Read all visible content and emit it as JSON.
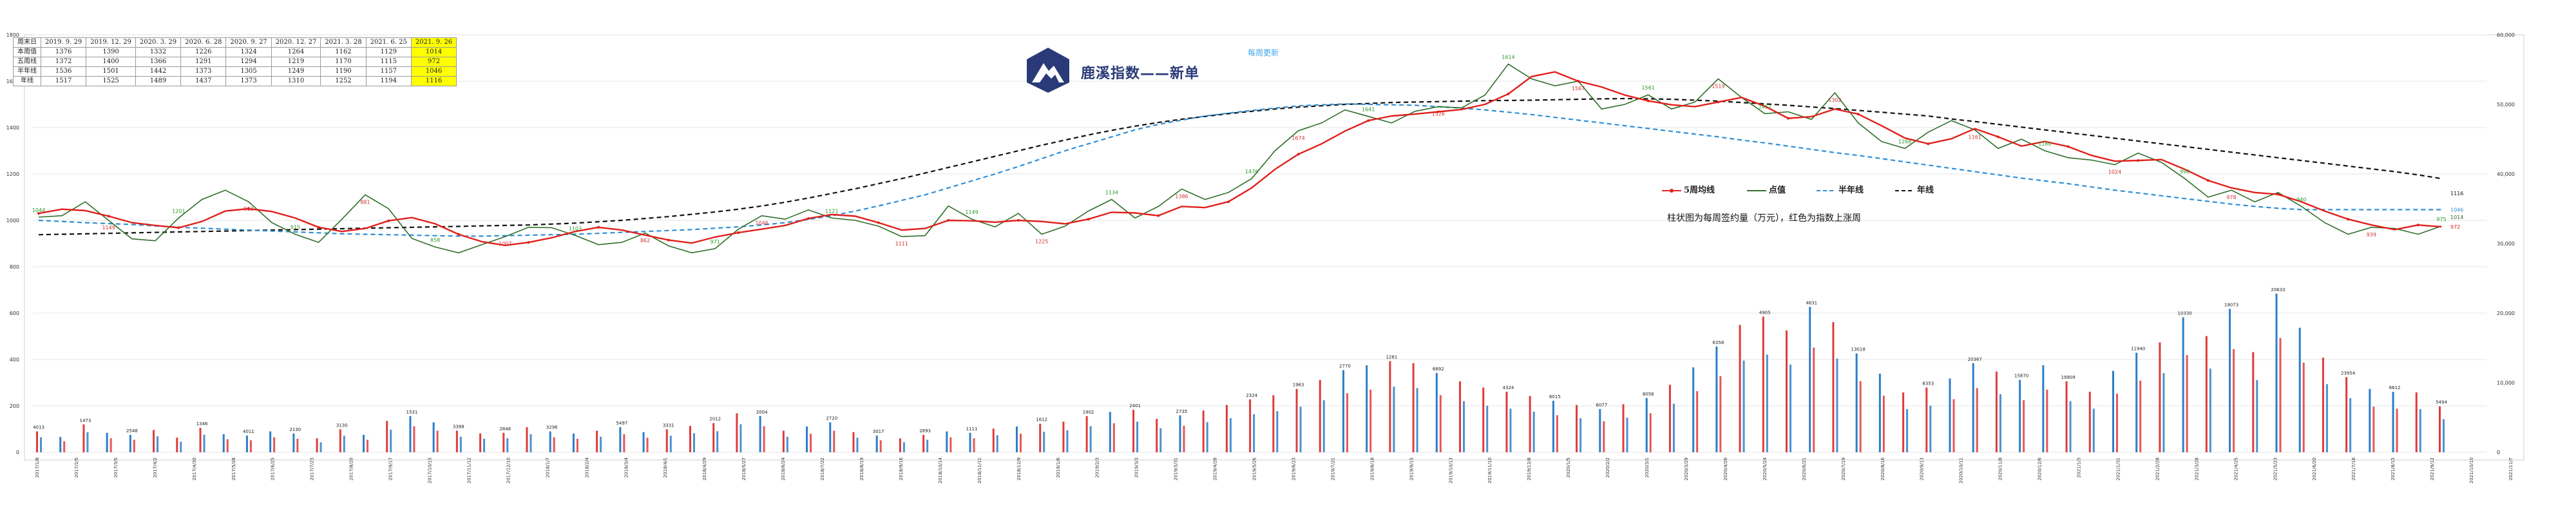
{
  "colors": {
    "ma5": "#e0201c",
    "price": "#2f6f2a",
    "half_year": "#2e8fd6",
    "year": "#111111",
    "bar_up": "#e03a3a",
    "bar_down": "#2b7ec9",
    "highlight": "#ffff00",
    "brand": "#2a3a78",
    "weekly_note": "#3fa7e8"
  },
  "header": {
    "brand_text": "鹿溪指数——新单",
    "weekly_note": "每周更新",
    "logo": "mountain-logo-icon"
  },
  "note": "柱状图为每周签约量（万元），红色为指数上涨周",
  "legend": [
    {
      "label": "5周均线",
      "key": "ma5"
    },
    {
      "label": "点值",
      "key": "price"
    },
    {
      "label": "半年线",
      "key": "half_year"
    },
    {
      "label": "年线",
      "key": "year"
    }
  ],
  "summary_table": {
    "rows": [
      [
        "周末日",
        "2019. 9. 29",
        "2019. 12. 29",
        "2020. 3. 29",
        "2020. 6. 28",
        "2020. 9. 27",
        "2020. 12. 27",
        "2021. 3. 28",
        "2021. 6. 25",
        "2021. 9. 26"
      ],
      [
        "本周值",
        "1376",
        "1390",
        "1332",
        "1226",
        "1324",
        "1264",
        "1162",
        "1129",
        "1014"
      ],
      [
        "五周线",
        "1372",
        "1400",
        "1366",
        "1291",
        "1294",
        "1219",
        "1170",
        "1115",
        "972"
      ],
      [
        "半年线",
        "1536",
        "1501",
        "1442",
        "1373",
        "1305",
        "1249",
        "1190",
        "1157",
        "1046"
      ],
      [
        "年线",
        "1517",
        "1525",
        "1489",
        "1437",
        "1373",
        "1310",
        "1252",
        "1194",
        "1116"
      ]
    ]
  },
  "chart_data": {
    "type": "line",
    "title": "",
    "y_left": {
      "ticks": [
        0,
        200,
        400,
        600,
        800,
        1000,
        1200,
        1400,
        1600,
        1800
      ],
      "ylim": [
        0,
        1800
      ]
    },
    "y_right": {
      "ticks": [
        "0",
        "10,000",
        "20,000",
        "30,000",
        "40,000",
        "50,000",
        "60,000"
      ],
      "ylim": [
        0,
        60000
      ]
    },
    "x_tick_labels": [
      "2017/1/8",
      "2017/2/5",
      "2017/3/5",
      "2017/4/2",
      "2017/4/30",
      "2017/5/28",
      "2017/6/25",
      "2017/7/23",
      "2017/8/20",
      "2017/9/17",
      "2017/10/15",
      "2017/11/12",
      "2017/12/10",
      "2018/1/7",
      "2018/2/4",
      "2018/3/4",
      "2018/4/1",
      "2018/4/29",
      "2018/5/27",
      "2018/6/24",
      "2018/7/22",
      "2018/8/19",
      "2018/9/16",
      "2018/10/14",
      "2018/11/11",
      "2018/12/9",
      "2019/1/6",
      "2019/2/3",
      "2019/3/3",
      "2019/3/31",
      "2019/4/28",
      "2019/5/26",
      "2019/6/23",
      "2019/7/21",
      "2019/8/18",
      "2019/9/15",
      "2019/10/13",
      "2019/11/10",
      "2019/12/8",
      "2020/1/5",
      "2020/2/2",
      "2020/3/1",
      "2020/3/29",
      "2020/4/26",
      "2020/5/24",
      "2020/6/21",
      "2020/7/19",
      "2020/8/16",
      "2020/9/13",
      "2020/10/11",
      "2020/11/8",
      "2020/12/6",
      "2021/1/3",
      "2021/1/31",
      "2021/2/28",
      "2021/3/28",
      "2021/4/25",
      "2021/5/23",
      "2021/6/20",
      "2021/7/18",
      "2021/8/15",
      "2021/9/12",
      "2021/10/10",
      "2021/11/7"
    ],
    "series": [
      {
        "name": "5周均线",
        "key": "ma5",
        "values": [
          1030,
          1048,
          1042,
          1018,
          990,
          978,
          968,
          995,
          1040,
          1050,
          1038,
          1010,
          970,
          952,
          965,
          998,
          1012,
          985,
          940,
          908,
          892,
          905,
          925,
          952,
          970,
          958,
          936,
          915,
          902,
          928,
          947,
          962,
          978,
          1008,
          1025,
          1018,
          990,
          958,
          965,
          1000,
          998,
          992,
          1000,
          995,
          985,
          1005,
          1035,
          1032,
          1020,
          1060,
          1055,
          1080,
          1140,
          1220,
          1285,
          1330,
          1385,
          1430,
          1450,
          1458,
          1468,
          1478,
          1500,
          1545,
          1620,
          1640,
          1600,
          1575,
          1540,
          1515,
          1498,
          1490,
          1510,
          1530,
          1492,
          1440,
          1447,
          1480,
          1458,
          1408,
          1355,
          1330,
          1352,
          1395,
          1360,
          1320,
          1340,
          1318,
          1280,
          1255,
          1258,
          1262,
          1220,
          1172,
          1140,
          1120,
          1112,
          1080,
          1040,
          1005,
          980,
          960,
          980,
          972
        ]
      },
      {
        "name": "点值",
        "key": "price",
        "values": [
          1014,
          1020,
          1080,
          1000,
          920,
          912,
          1010,
          1090,
          1130,
          1080,
          990,
          940,
          905,
          1005,
          1110,
          1050,
          922,
          885,
          860,
          895,
          930,
          970,
          968,
          935,
          895,
          905,
          945,
          890,
          860,
          878,
          962,
          1020,
          1005,
          1045,
          1010,
          1000,
          975,
          930,
          934,
          1062,
          1005,
          972,
          1030,
          940,
          975,
          1040,
          1090,
          1010,
          1060,
          1135,
          1090,
          1120,
          1180,
          1300,
          1386,
          1420,
          1476,
          1448,
          1420,
          1470,
          1490,
          1485,
          1540,
          1674,
          1610,
          1580,
          1600,
          1480,
          1500,
          1541,
          1480,
          1510,
          1610,
          1530,
          1460,
          1468,
          1435,
          1550,
          1420,
          1340,
          1310,
          1380,
          1430,
          1390,
          1310,
          1350,
          1300,
          1270,
          1260,
          1240,
          1290,
          1250,
          1180,
          1100,
          1130,
          1080,
          1120,
          1060,
          990,
          940,
          970,
          965,
          940,
          975
        ]
      },
      {
        "name": "半年线",
        "key": "half_year",
        "values": [
          1000,
          995,
          990,
          986,
          982,
          976,
          970,
          966,
          962,
          958,
          954,
          950,
          946,
          942,
          940,
          938,
          936,
          934,
          932,
          932,
          934,
          936,
          938,
          940,
          944,
          948,
          952,
          956,
          960,
          966,
          972,
          980,
          990,
          1004,
          1020,
          1040,
          1062,
          1086,
          1110,
          1140,
          1170,
          1200,
          1232,
          1266,
          1300,
          1330,
          1360,
          1390,
          1414,
          1432,
          1450,
          1462,
          1474,
          1484,
          1494,
          1498,
          1502,
          1500,
          1498,
          1496,
          1490,
          1484,
          1476,
          1466,
          1456,
          1444,
          1432,
          1420,
          1408,
          1396,
          1384,
          1372,
          1360,
          1346,
          1334,
          1320,
          1306,
          1292,
          1280,
          1266,
          1252,
          1238,
          1224,
          1210,
          1196,
          1182,
          1170,
          1158,
          1144,
          1130,
          1118,
          1106,
          1094,
          1082,
          1070,
          1060,
          1052,
          1046,
          1046,
          1046,
          1046,
          1046,
          1046,
          1046
        ]
      },
      {
        "name": "年线",
        "key": "year",
        "values": [
          938,
          940,
          942,
          944,
          946,
          948,
          950,
          952,
          954,
          956,
          958,
          960,
          962,
          964,
          966,
          968,
          970,
          972,
          974,
          976,
          978,
          980,
          984,
          988,
          994,
          1000,
          1008,
          1016,
          1026,
          1036,
          1048,
          1062,
          1078,
          1096,
          1116,
          1136,
          1158,
          1180,
          1204,
          1228,
          1252,
          1276,
          1300,
          1324,
          1346,
          1368,
          1388,
          1406,
          1422,
          1436,
          1448,
          1460,
          1470,
          1480,
          1488,
          1494,
          1500,
          1504,
          1508,
          1510,
          1512,
          1514,
          1516,
          1517,
          1518,
          1520,
          1522,
          1524,
          1525,
          1524,
          1522,
          1518,
          1514,
          1508,
          1502,
          1496,
          1489,
          1482,
          1474,
          1466,
          1458,
          1450,
          1437,
          1426,
          1414,
          1402,
          1390,
          1378,
          1366,
          1354,
          1342,
          1330,
          1318,
          1306,
          1294,
          1282,
          1270,
          1258,
          1246,
          1234,
          1222,
          1210,
          1196,
          1180
        ]
      },
      {
        "name": "周签约量",
        "key": "volume",
        "values": [
          3000,
          2200,
          4000,
          2800,
          2500,
          3200,
          2100,
          3500,
          2600,
          2400,
          3000,
          2700,
          2000,
          3300,
          2500,
          4500,
          5200,
          4300,
          3100,
          2700,
          2800,
          3600,
          3000,
          2700,
          3100,
          3600,
          2900,
          3300,
          3800,
          4200,
          5600,
          5200,
          3100,
          3700,
          4300,
          2900,
          2400,
          2000,
          2500,
          3000,
          2800,
          3400,
          3700,
          4100,
          4400,
          5200,
          5800,
          6100,
          4800,
          5300,
          6000,
          6800,
          7600,
          8200,
          9100,
          10400,
          11800,
          12500,
          13100,
          12800,
          11400,
          10200,
          9300,
          8700,
          8100,
          7400,
          6800,
          6200,
          6900,
          7800,
          9700,
          12200,
          15200,
          18300,
          19500,
          17500,
          20900,
          18700,
          14200,
          11300,
          8600,
          9300,
          10600,
          12800,
          11600,
          10400,
          12500,
          10200,
          8700,
          11700,
          14300,
          15800,
          19400,
          16700,
          20600,
          14400,
          22800,
          17900,
          13600,
          10800,
          9100,
          8700,
          8600,
          6600
        ]
      },
      {
        "name": "上涨周",
        "key": "up_flags",
        "values": [
          1,
          0,
          1,
          0,
          0,
          1,
          1,
          1,
          0,
          0,
          0,
          0,
          1,
          1,
          0,
          1,
          0,
          0,
          1,
          1,
          1,
          1,
          0,
          0,
          1,
          0,
          0,
          1,
          1,
          1,
          1,
          0,
          1,
          0,
          0,
          1,
          0,
          1,
          1,
          0,
          0,
          1,
          0,
          1,
          1,
          1,
          0,
          1,
          1,
          0,
          1,
          1,
          1,
          1,
          1,
          1,
          0,
          0,
          1,
          1,
          0,
          1,
          1,
          1,
          1,
          0,
          1,
          0,
          1,
          0,
          1,
          0,
          0,
          1,
          1,
          1,
          0,
          1,
          0,
          0,
          1,
          1,
          0,
          0,
          1,
          0,
          0,
          1,
          1,
          0,
          0,
          1,
          0,
          1,
          0,
          1,
          0,
          0,
          1,
          1,
          0,
          0,
          1,
          1
        ]
      }
    ],
    "price_labels": [
      "1044",
      "1149",
      "1201",
      "962",
      "915",
      "881",
      "858",
      "1007",
      "1103",
      "862",
      "971",
      "1046",
      "1121",
      "1111",
      "1149",
      "1225",
      "1134",
      "1386",
      "1476",
      "1674",
      "1641",
      "1526",
      "1614",
      "1567",
      "1561",
      "1519",
      "1457",
      "1302",
      "1268",
      "1161",
      "1160",
      "1024",
      "990",
      "978",
      "940",
      "939",
      "975"
    ],
    "volume_labels": [
      "4013",
      "1473",
      "2548",
      "1346",
      "4011",
      "2130",
      "3130",
      "1531",
      "3388",
      "2846",
      "3296",
      "5497",
      "3331",
      "2012",
      "2004",
      "2720",
      "3017",
      "2893",
      "1111",
      "1612",
      "1902",
      "2401",
      "2735",
      "2324",
      "1963",
      "2770",
      "1281",
      "6692",
      "4324",
      "6015",
      "6077",
      "8056",
      "6358",
      "4905",
      "4831",
      "13018",
      "8353",
      "20367",
      "15870",
      "19909",
      "11940",
      "10330",
      "19073",
      "20633",
      "23954",
      "8612",
      "5494"
    ],
    "right_labels": [
      "1116",
      "1046",
      "1014",
      "972"
    ]
  }
}
